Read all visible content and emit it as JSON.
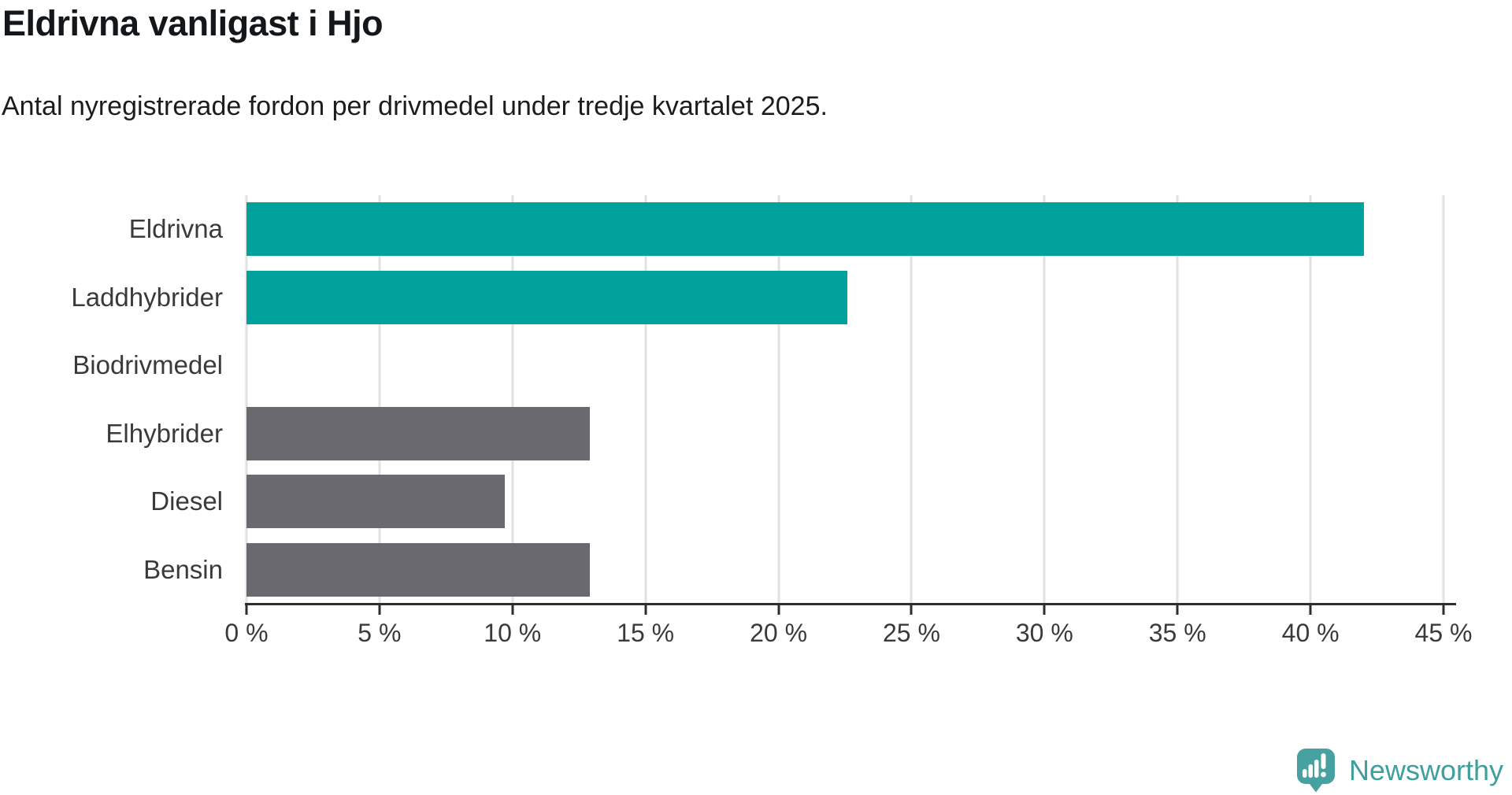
{
  "header": {
    "title": "Eldrivna vanligast i Hjo",
    "subtitle": "Antal nyregistrerade fordon per drivmedel under tredje kvartalet 2025."
  },
  "chart_data": {
    "type": "bar",
    "orientation": "horizontal",
    "title": "Eldrivna vanligast i Hjo",
    "subtitle": "Antal nyregistrerade fordon per drivmedel under tredje kvartalet 2025.",
    "categories": [
      "Eldrivna",
      "Laddhybrider",
      "Biodrivmedel",
      "Elhybrider",
      "Diesel",
      "Bensin"
    ],
    "values": [
      42,
      22.6,
      0,
      12.9,
      9.7,
      12.9
    ],
    "unit": "%",
    "xlabel": "",
    "ylabel": "",
    "xlim": [
      0,
      45
    ],
    "x_ticks": [
      0,
      5,
      10,
      15,
      20,
      25,
      30,
      35,
      40,
      45
    ],
    "x_tick_labels": [
      "0 %",
      "5 %",
      "10 %",
      "15 %",
      "20 %",
      "25 %",
      "30 %",
      "35 %",
      "40 %",
      "45 %"
    ],
    "bar_colors": [
      "#00a29b",
      "#00a29b",
      null,
      "#6b6970",
      "#6b6970",
      "#6b6970"
    ],
    "colors": {
      "highlight": "#00a29b",
      "neutral": "#6b6970",
      "gridline": "#e2e2e2",
      "axis": "#2e2e2e"
    },
    "grid": true,
    "legend": false
  },
  "branding": {
    "name": "Newsworthy",
    "color": "#3f9f9d",
    "logo_icon": "newsworthy-speech-bubble-chart-icon"
  }
}
